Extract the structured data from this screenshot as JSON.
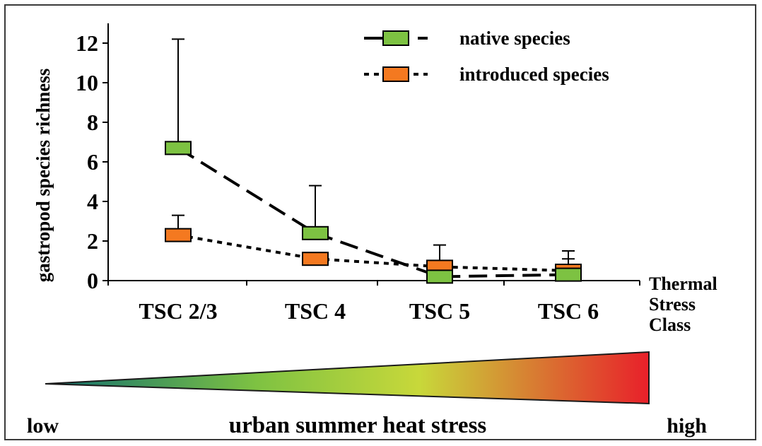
{
  "chart_data": {
    "type": "line",
    "ylabel": "gastropod species richness",
    "xlabel": "Thermal Stress Class",
    "xlabel_lines": [
      "Thermal",
      "Stress",
      "Class"
    ],
    "categories": [
      "TSC 2/3",
      "TSC 4",
      "TSC 5",
      "TSC 6"
    ],
    "ylim": [
      0,
      12
    ],
    "yticks": [
      "0",
      "2",
      "4",
      "6",
      "8",
      "10",
      "12"
    ],
    "grid": false,
    "legend_position": "top-right",
    "series": [
      {
        "name": "native species",
        "line_style": "long-dash",
        "marker_color": "#7dc242",
        "values": [
          6.7,
          2.4,
          0.2,
          0.3
        ],
        "error_upper": [
          12.2,
          4.8,
          0,
          1.1
        ]
      },
      {
        "name": "introduced species",
        "line_style": "dotted",
        "marker_color": "#f47920",
        "values": [
          2.3,
          1.1,
          0.7,
          0.5
        ],
        "error_upper": [
          3.3,
          0,
          1.8,
          1.5
        ]
      }
    ]
  },
  "heat_bar": {
    "title": "urban summer heat stress",
    "low_label": "low",
    "high_label": "high",
    "low_color": "#2fb3c6",
    "high_color": "#e8202a",
    "gradient_colors": [
      "#0e6e70",
      "#7ec242",
      "#c8d83a",
      "#e8202a"
    ]
  }
}
